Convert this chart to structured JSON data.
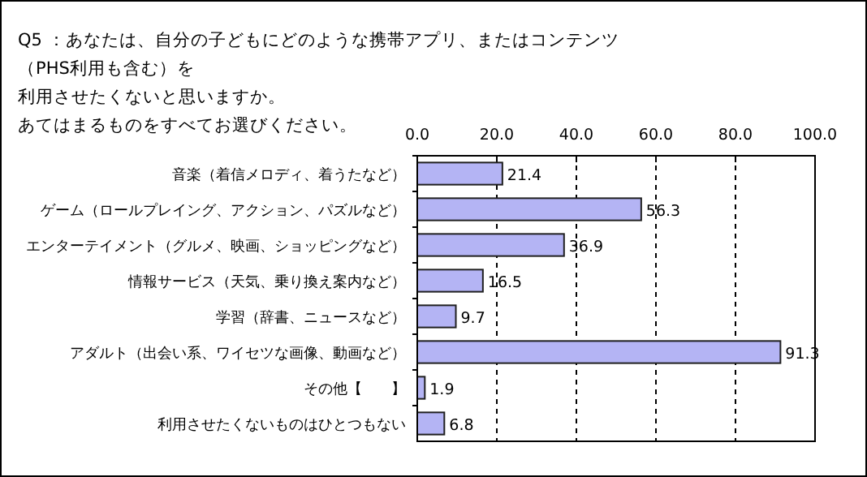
{
  "chart_data": {
    "type": "bar",
    "orientation": "horizontal",
    "title": "Q5 ：あなたは、自分の子どもにどのような携帯アプリ、またはコンテンツ（PHS利用も含む）を",
    "subtitle": "利用させたくないと思いますか。",
    "annotations": [
      "あてはまるものをすべてお選びください。"
    ],
    "categories": [
      "音楽（着信メロディ、着うたなど）",
      "ゲーム（ロールプレイング、アクション、パズルなど）",
      "エンターテイメント（グルメ、映画、ショッピングなど）",
      "情報サービス（天気、乗り換え案内など）",
      "学習（辞書、ニュースなど）",
      "アダルト（出会い系、ワイセツな画像、動画など）",
      "その他【　　】",
      "利用させたくないものはひとつもない"
    ],
    "values": [
      21.4,
      56.3,
      36.9,
      16.5,
      9.7,
      91.3,
      1.9,
      6.8
    ],
    "color": "#b4b4f4",
    "xlim": [
      0,
      100
    ],
    "xticks": [
      {
        "value": 0,
        "label": "0.0"
      },
      {
        "value": 20,
        "label": "20.0"
      },
      {
        "value": 40,
        "label": "40.0"
      },
      {
        "value": 60,
        "label": "60.0"
      },
      {
        "value": 80,
        "label": "80.0"
      },
      {
        "value": 100,
        "label": "100.0"
      }
    ],
    "grid": "x",
    "data_labels": true
  }
}
